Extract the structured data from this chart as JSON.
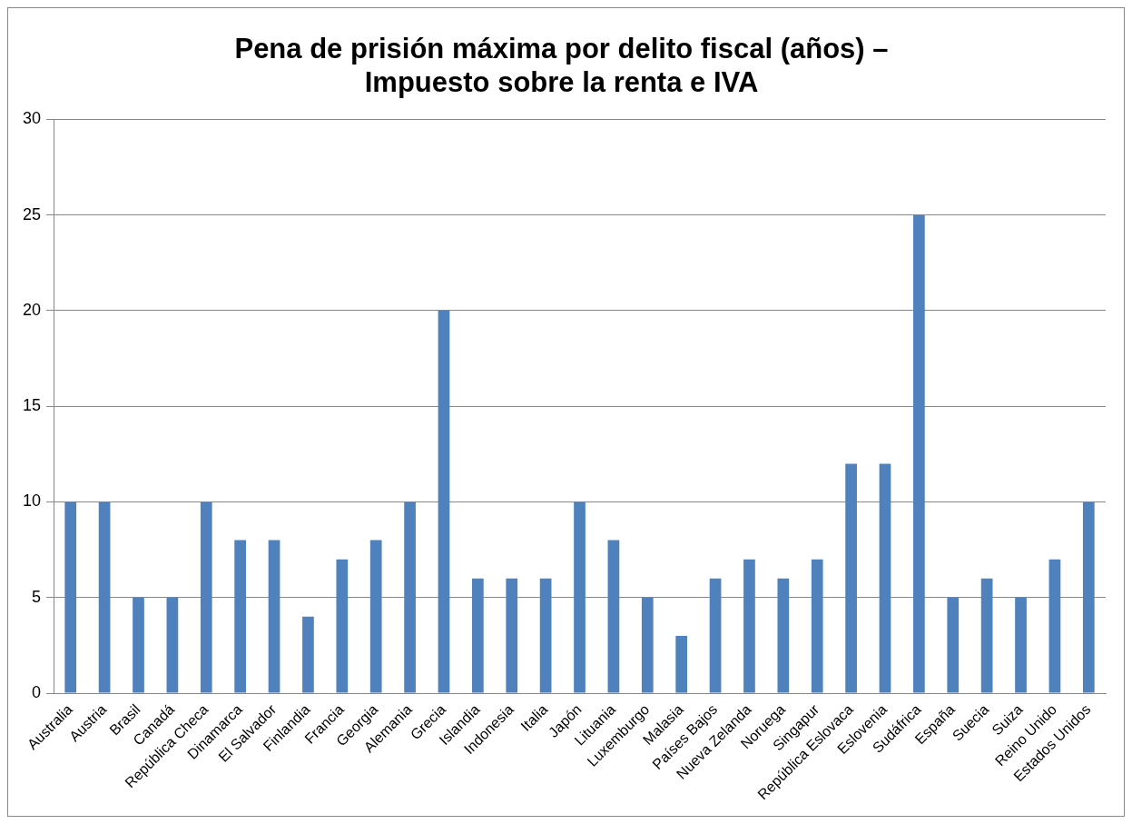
{
  "chart_data": {
    "type": "bar",
    "title": "Pena de prisión máxima por delito fiscal (años) –\nImpuesto sobre la renta e IVA",
    "categories": [
      "Australia",
      "Austria",
      "Brasil",
      "Canadá",
      "República Checa",
      "Dinamarca",
      "El Salvador",
      "Finlandia",
      "Francia",
      "Georgia",
      "Alemania",
      "Grecia",
      "Islandia",
      "Indonesia",
      "Italia",
      "Japón",
      "Lituania",
      "Luxemburgo",
      "Malasia",
      "Países Bajos",
      "Nueva Zelanda",
      "Noruega",
      "Singapur",
      "República Eslovaca",
      "Eslovenia",
      "Sudáfrica",
      "España",
      "Suecia",
      "Suiza",
      "Reino Unido",
      "Estados Unidos"
    ],
    "values": [
      10,
      10,
      5,
      5,
      10,
      8,
      8,
      4,
      7,
      8,
      10,
      20,
      6,
      6,
      6,
      10,
      8,
      5,
      3,
      6,
      7,
      6,
      7,
      12,
      12,
      25,
      5,
      6,
      5,
      7,
      10
    ],
    "color": "#4f81bd",
    "ylim": [
      0,
      30
    ],
    "yticks": [
      0,
      5,
      10,
      15,
      20,
      25,
      30
    ],
    "grid": "y"
  }
}
